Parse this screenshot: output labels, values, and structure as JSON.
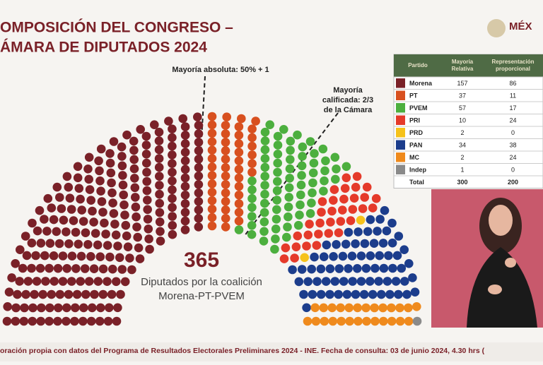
{
  "title_lines": [
    "OMPOSICIÓN DEL CONGRESO –",
    "ÁMARA DE DIPUTADOS 2024"
  ],
  "logo": "MÉX",
  "annotations": {
    "absolute": "Mayoría absoluta: 50% + 1",
    "qualified": [
      "Mayoría",
      "calificada: 2/3",
      "de la Cámara"
    ]
  },
  "center": {
    "number": "365",
    "lines": [
      "Diputados por la coalición",
      "Morena-PT-PVEM"
    ]
  },
  "table": {
    "header": [
      "Partido",
      "Mayoría Relativa",
      "Representación proporcional"
    ],
    "rows": [
      [
        "Morena",
        157,
        86
      ],
      [
        "PT",
        37,
        11
      ],
      [
        "PVEM",
        57,
        17
      ],
      [
        "PRI",
        10,
        24
      ],
      [
        "PRD",
        2,
        0
      ],
      [
        "PAN",
        34,
        38
      ],
      [
        "MC",
        2,
        24
      ],
      [
        "Indep",
        1,
        0
      ]
    ],
    "colors": [
      "#7a2128",
      "#d8501f",
      "#4caf3e",
      "#e53a2a",
      "#f6c21a",
      "#1c3d8c",
      "#ef8a1d",
      "#8a8a8a"
    ],
    "total": [
      "Total",
      300,
      200
    ]
  },
  "footer": "oración propia con datos del Programa de Resultados Electorales Preliminares 2024 - INE. Fecha de consulta: 03 de junio 2024, 4.30 hrs ("
}
